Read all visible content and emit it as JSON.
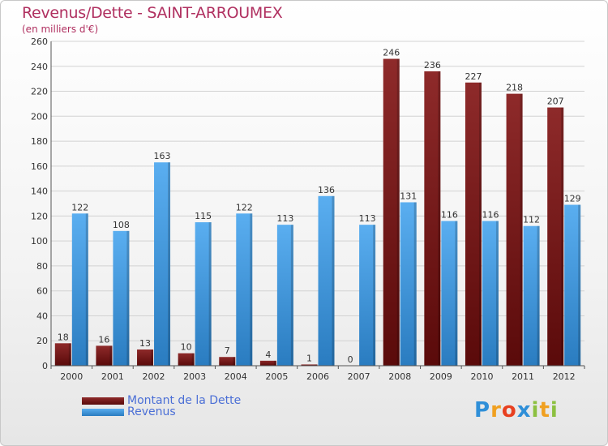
{
  "header": {
    "title": "Revenus/Dette - SAINT-ARROUMEX",
    "subtitle": "(en milliers d'€)"
  },
  "legend": {
    "debt_label": "Montant de la Dette",
    "revenue_label": "Revenus"
  },
  "logo": {
    "text": "Proxiti",
    "letters": [
      {
        "ch": "P",
        "color": "#2f8fd8"
      },
      {
        "ch": "r",
        "color": "#f0a020"
      },
      {
        "ch": "o",
        "color": "#e84020"
      },
      {
        "ch": "x",
        "color": "#2f8fd8"
      },
      {
        "ch": "i",
        "color": "#8cc040"
      },
      {
        "ch": "t",
        "color": "#f0a020"
      },
      {
        "ch": "i",
        "color": "#8cc040"
      }
    ]
  },
  "colors": {
    "title": "#b03060",
    "debt_bar": "#7a1a1a",
    "revenue_bar": "#3d96d8",
    "legend_text": "#4b6fd6"
  },
  "chart_data": {
    "type": "bar",
    "title": "Revenus/Dette - SAINT-ARROUMEX",
    "subtitle": "(en milliers d'€)",
    "categories": [
      "2000",
      "2001",
      "2002",
      "2003",
      "2004",
      "2005",
      "2006",
      "2007",
      "2008",
      "2009",
      "2010",
      "2011",
      "2012"
    ],
    "series": [
      {
        "name": "Montant de la Dette",
        "values": [
          18,
          16,
          13,
          10,
          7,
          4,
          1,
          0,
          246,
          236,
          227,
          218,
          207
        ]
      },
      {
        "name": "Revenus",
        "values": [
          122,
          108,
          163,
          115,
          122,
          113,
          136,
          113,
          131,
          116,
          116,
          112,
          129
        ]
      }
    ],
    "ylim": [
      0,
      260
    ],
    "yticks": [
      0,
      20,
      40,
      60,
      80,
      100,
      120,
      140,
      160,
      180,
      200,
      220,
      240,
      260
    ],
    "grid": true,
    "legend_position": "bottom-left"
  }
}
